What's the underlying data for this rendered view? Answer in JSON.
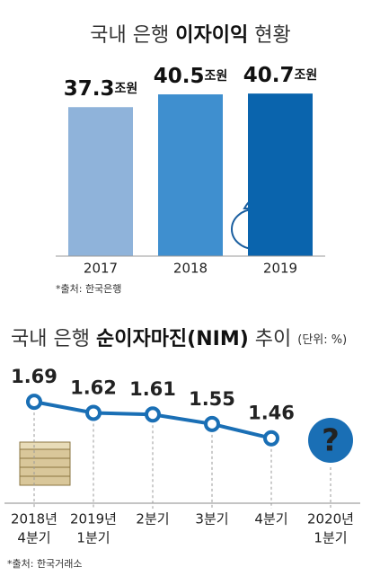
{
  "chart_data": [
    {
      "type": "bar",
      "title": [
        "국내 은행",
        "이자이익",
        "현황"
      ],
      "categories": [
        "2017",
        "2018",
        "2019"
      ],
      "values": [
        37.3,
        40.5,
        40.7
      ],
      "value_unit": "조원",
      "colors": [
        "#8fb3da",
        "#3f8fcf",
        "#0a64ad"
      ],
      "ylim": [
        0,
        45
      ],
      "source": "*출처: 한국은행"
    },
    {
      "type": "line",
      "title": [
        "국내 은행",
        "순이자마진(NIM)",
        "추이"
      ],
      "unit_note": "(단위: %)",
      "categories": [
        [
          "2018년",
          "4분기"
        ],
        [
          "2019년",
          "1분기"
        ],
        [
          "2분기"
        ],
        [
          "3분기"
        ],
        [
          "4분기"
        ],
        [
          "2020년",
          "1분기"
        ]
      ],
      "values": [
        1.69,
        1.62,
        1.61,
        1.55,
        1.46,
        null
      ],
      "color": "#1a6fb5",
      "ylim": [
        1.3,
        1.9
      ],
      "annotation": "?",
      "source": "*출처: 한국거래소"
    }
  ]
}
